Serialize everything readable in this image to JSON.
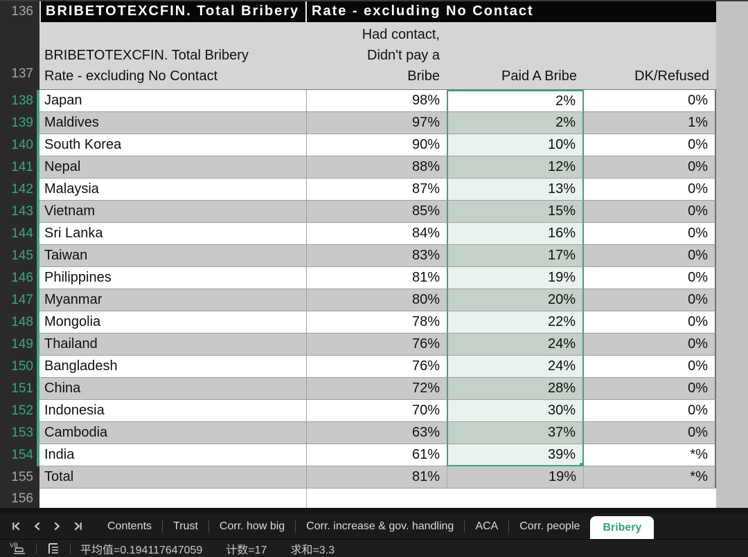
{
  "sheet": {
    "title_row": {
      "num": "136",
      "text_a": "BRIBETOTEXCFIN. Total Bribery",
      "text_b": "Rate - excluding No Contact"
    },
    "header_row": {
      "num": "137",
      "col_a_line1": "BRIBETOTEXCFIN. Total Bribery",
      "col_a_line2": "Rate - excluding No Contact",
      "col_b_line1": "Had contact,",
      "col_b_line2": "Didn't pay a",
      "col_b_line3": "Bribe",
      "col_c": "Paid A Bribe",
      "col_d": "DK/Refused"
    },
    "rows": [
      {
        "num": "138",
        "country": "Japan",
        "no_bribe": "98%",
        "paid": "2%",
        "dk": "0%",
        "selected": true
      },
      {
        "num": "139",
        "country": "Maldives",
        "no_bribe": "97%",
        "paid": "2%",
        "dk": "1%",
        "selected": true
      },
      {
        "num": "140",
        "country": "South Korea",
        "no_bribe": "90%",
        "paid": "10%",
        "dk": "0%",
        "selected": true
      },
      {
        "num": "141",
        "country": "Nepal",
        "no_bribe": "88%",
        "paid": "12%",
        "dk": "0%",
        "selected": true
      },
      {
        "num": "142",
        "country": "Malaysia",
        "no_bribe": "87%",
        "paid": "13%",
        "dk": "0%",
        "selected": true
      },
      {
        "num": "143",
        "country": "Vietnam",
        "no_bribe": "85%",
        "paid": "15%",
        "dk": "0%",
        "selected": true
      },
      {
        "num": "144",
        "country": "Sri Lanka",
        "no_bribe": "84%",
        "paid": "16%",
        "dk": "0%",
        "selected": true
      },
      {
        "num": "145",
        "country": "Taiwan",
        "no_bribe": "83%",
        "paid": "17%",
        "dk": "0%",
        "selected": true
      },
      {
        "num": "146",
        "country": "Philippines",
        "no_bribe": "81%",
        "paid": "19%",
        "dk": "0%",
        "selected": true
      },
      {
        "num": "147",
        "country": "Myanmar",
        "no_bribe": "80%",
        "paid": "20%",
        "dk": "0%",
        "selected": true
      },
      {
        "num": "148",
        "country": "Mongolia",
        "no_bribe": "78%",
        "paid": "22%",
        "dk": "0%",
        "selected": true
      },
      {
        "num": "149",
        "country": "Thailand",
        "no_bribe": "76%",
        "paid": "24%",
        "dk": "0%",
        "selected": true
      },
      {
        "num": "150",
        "country": "Bangladesh",
        "no_bribe": "76%",
        "paid": "24%",
        "dk": "0%",
        "selected": true
      },
      {
        "num": "151",
        "country": "China",
        "no_bribe": "72%",
        "paid": "28%",
        "dk": "0%",
        "selected": true
      },
      {
        "num": "152",
        "country": "Indonesia",
        "no_bribe": "70%",
        "paid": "30%",
        "dk": "0%",
        "selected": true
      },
      {
        "num": "153",
        "country": "Cambodia",
        "no_bribe": "63%",
        "paid": "37%",
        "dk": "0%",
        "selected": true
      },
      {
        "num": "154",
        "country": "India",
        "no_bribe": "61%",
        "paid": "39%",
        "dk": "*%",
        "selected": true
      },
      {
        "num": "155",
        "country": "Total",
        "no_bribe": "81%",
        "paid": "19%",
        "dk": "*%",
        "selected": false
      }
    ],
    "empty_row": {
      "num": "156"
    }
  },
  "tabbar": {
    "nav_icons": [
      "nav-first-icon",
      "nav-prev-icon",
      "nav-next-icon",
      "nav-last-icon"
    ],
    "tabs": [
      {
        "label": "Contents",
        "active": false
      },
      {
        "label": "Trust",
        "active": false
      },
      {
        "label": "Corr. how big",
        "active": false
      },
      {
        "label": "Corr. increase & gov. handling",
        "active": false
      },
      {
        "label": "ACA",
        "active": false
      },
      {
        "label": "Corr. people",
        "active": false
      },
      {
        "label": "Bribery",
        "active": true
      }
    ]
  },
  "statusbar": {
    "icons": [
      "macro-icon",
      "outline-icon"
    ],
    "average": "平均值=0.194117647059",
    "count": "计数=17",
    "sum": "求和=3.3"
  },
  "colors": {
    "accent_teal": "#3da181",
    "active_tab_text": "#35a384",
    "selection_fill_light": "#e9f3ed",
    "selection_fill_shaded": "#c4d0c8",
    "title_fill": "#070707",
    "header_fill": "#d5d5d5",
    "alt_row_fill": "#c9c9c9"
  }
}
